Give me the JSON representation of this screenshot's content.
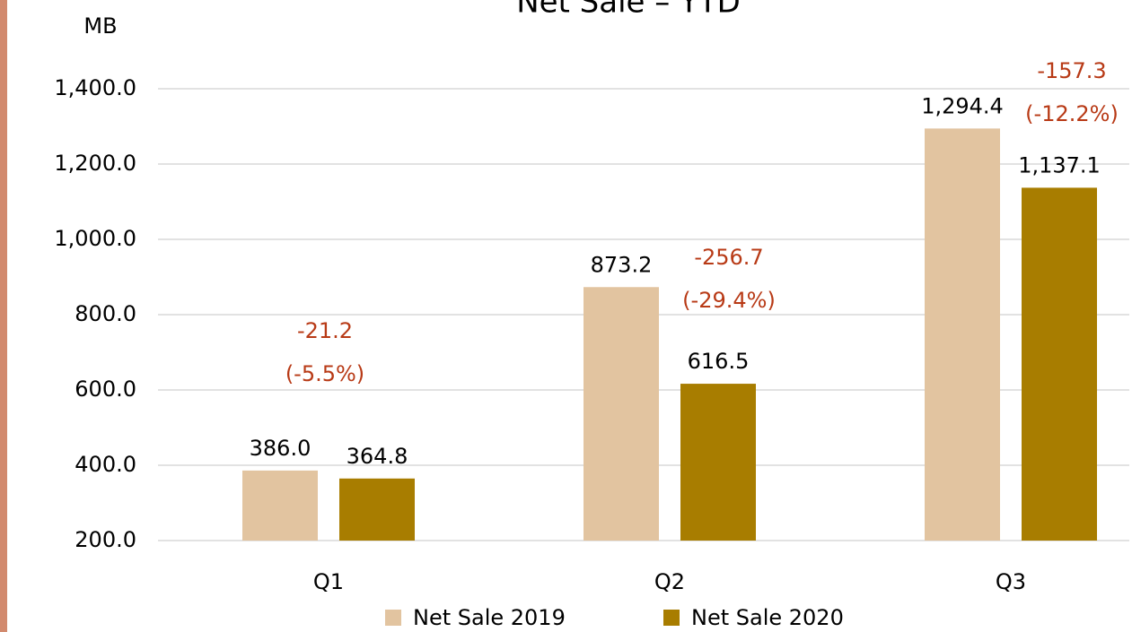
{
  "chart_data": {
    "type": "bar",
    "title": "Net Sale – YTD",
    "y_label": "MB",
    "categories": [
      "Q1",
      "Q2",
      "Q3"
    ],
    "series": [
      {
        "name": "Net Sale 2019",
        "color": "#e2c4a0",
        "values": [
          386.0,
          873.2,
          1294.4
        ],
        "value_labels": [
          "386.0",
          "873.2",
          "1,294.4"
        ]
      },
      {
        "name": "Net Sale 2020",
        "color": "#a87d00",
        "values": [
          364.8,
          616.5,
          1137.1
        ],
        "value_labels": [
          "364.8",
          "616.5",
          "1,137.1"
        ]
      }
    ],
    "annotations": [
      {
        "lines": [
          "-21.2",
          "(-5.5%)"
        ]
      },
      {
        "lines": [
          "-256.7",
          "(-29.4%)"
        ]
      },
      {
        "lines": [
          "-157.3",
          "(-12.2%)"
        ]
      }
    ],
    "ylim": [
      200,
      1400
    ],
    "yticks": [
      {
        "value": 200,
        "label": "200.0"
      },
      {
        "value": 400,
        "label": "400.0"
      },
      {
        "value": 600,
        "label": "600.0"
      },
      {
        "value": 800,
        "label": "800.0"
      },
      {
        "value": 1000,
        "label": "1,000.0"
      },
      {
        "value": 1200,
        "label": "1,200.0"
      },
      {
        "value": 1400,
        "label": "1,400.0"
      }
    ],
    "grid": true,
    "legend": "bottom"
  }
}
